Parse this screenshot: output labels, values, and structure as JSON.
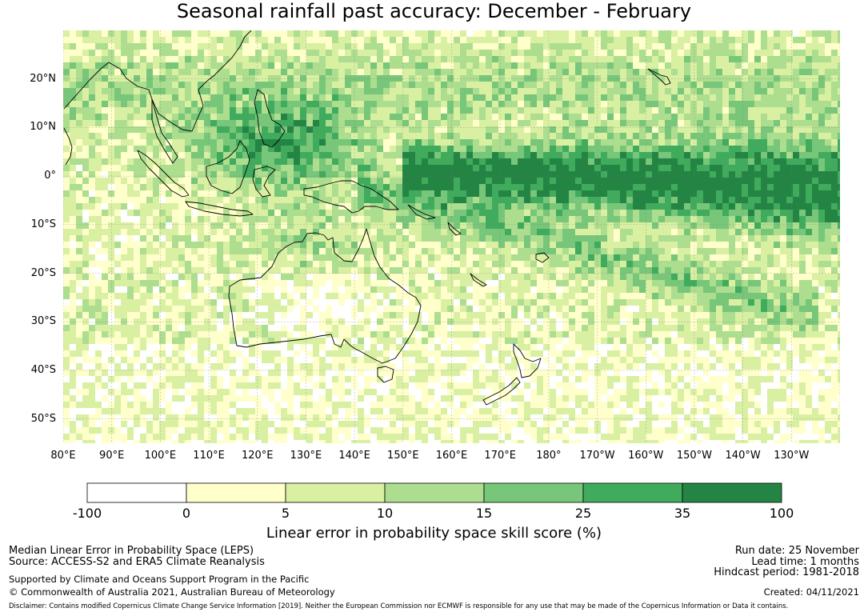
{
  "title": "Seasonal rainfall past accuracy: December - February",
  "map": {
    "lat_labels": [
      "20°N",
      "10°N",
      "0°",
      "10°S",
      "20°S",
      "30°S",
      "40°S",
      "50°S"
    ],
    "lon_labels": [
      "80°E",
      "90°E",
      "100°E",
      "110°E",
      "120°E",
      "130°E",
      "140°E",
      "150°E",
      "160°E",
      "170°E",
      "180°",
      "170°W",
      "160°W",
      "150°W",
      "140°W",
      "130°W"
    ],
    "extent": {
      "lon_min": 80,
      "lon_max": 240,
      "lat_min": -55,
      "lat_max": 30
    }
  },
  "colorbar": {
    "title": "Linear error in probability space skill score (%)",
    "bounds": [
      "-100",
      "0",
      "5",
      "10",
      "15",
      "25",
      "35",
      "100"
    ],
    "colors": [
      "#ffffff",
      "#ffffcc",
      "#d9f0a3",
      "#addd8e",
      "#78c679",
      "#41ab5d",
      "#238443"
    ]
  },
  "footer": {
    "line1": "Median Linear Error in Probability Space (LEPS)",
    "line2": "Source: ACCESS-S2 and ERA5 Climate Reanalysis",
    "line3": "Supported by Climate and Oceans Support Program in the Pacific",
    "line4": "© Commonwealth of Australia 2021, Australian Bureau of Meteorology",
    "run_date": "Run date: 25 November",
    "lead_time": "Lead time: 1 months",
    "hindcast": "Hindcast period: 1981-2018",
    "created": "Created: 04/11/2021",
    "disclaimer": "Disclaimer: Contains modified Copernicus Climate Change Service Information [2019]. Neither the European Commission nor ECMWF is responsible for any use that may be made of the Copernicus Information or Data it contains."
  }
}
